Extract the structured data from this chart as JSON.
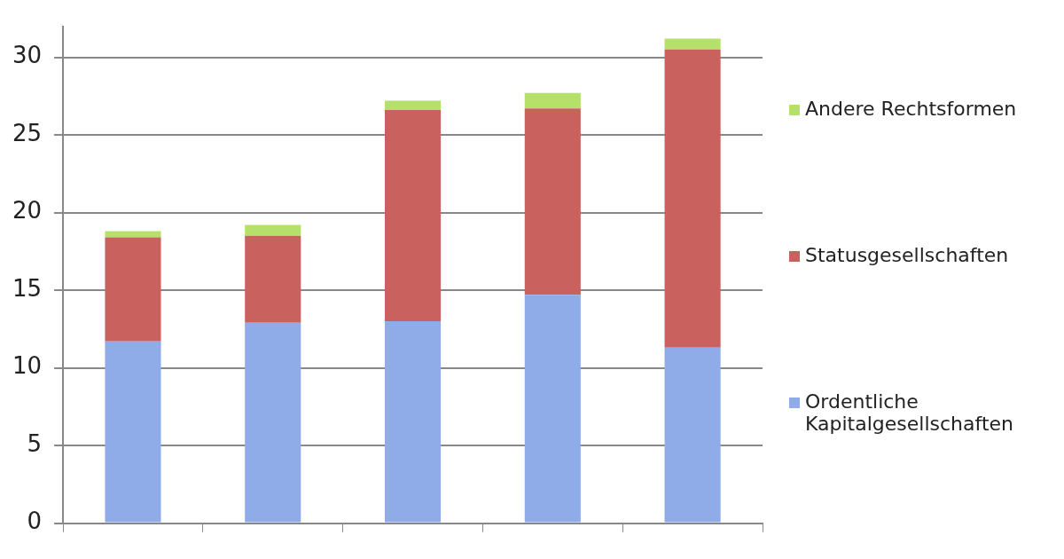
{
  "chart_data": {
    "type": "bar",
    "stacked": true,
    "categories": [
      null,
      null,
      null,
      null,
      null
    ],
    "series": [
      {
        "name": "Ordentliche Kapitalgesellschaften",
        "color": "#8fabe8",
        "values": [
          11.7,
          12.9,
          13.0,
          14.7,
          11.3
        ]
      },
      {
        "name": "Statusgesellschaften",
        "color": "#c9625f",
        "values": [
          6.7,
          5.6,
          13.6,
          12.0,
          19.2
        ]
      },
      {
        "name": "Andere Rechtsformen",
        "color": "#b5e06a",
        "values": [
          0.4,
          0.7,
          0.6,
          1.0,
          0.7
        ]
      }
    ],
    "ylim": [
      0,
      32
    ],
    "yticks": [
      0,
      5,
      10,
      15,
      20,
      25,
      30
    ],
    "grid": "y",
    "legend": "right"
  }
}
